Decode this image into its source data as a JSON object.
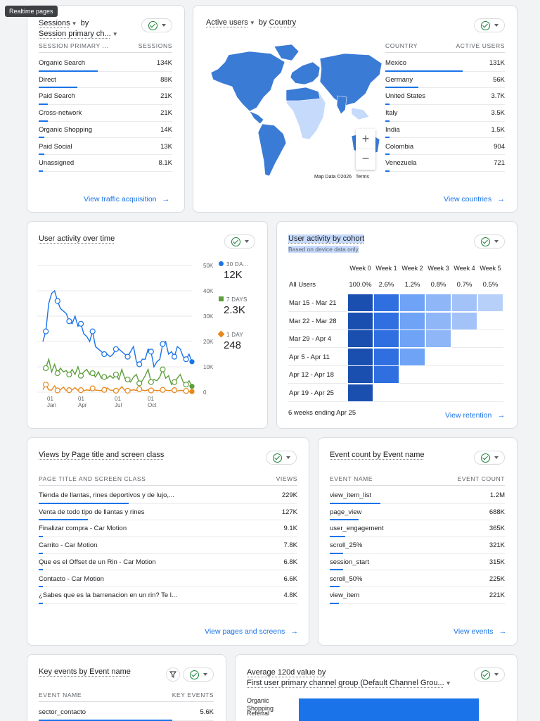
{
  "tooltip": "Realtime pages",
  "sessions_card": {
    "title_metric": "Sessions",
    "title_by": "by",
    "title_dim": "Session primary ch...",
    "col_dim": "SESSION PRIMARY ...",
    "col_metric": "SESSIONS",
    "rows": [
      {
        "label": "Organic Search",
        "value": "134K",
        "share": 1.0
      },
      {
        "label": "Direct",
        "value": "88K",
        "share": 0.66
      },
      {
        "label": "Paid Search",
        "value": "21K",
        "share": 0.16
      },
      {
        "label": "Cross-network",
        "value": "21K",
        "share": 0.16
      },
      {
        "label": "Organic Shopping",
        "value": "14K",
        "share": 0.1
      },
      {
        "label": "Paid Social",
        "value": "13K",
        "share": 0.1
      },
      {
        "label": "Unassigned",
        "value": "8.1K",
        "share": 0.06
      }
    ],
    "link": "View traffic acquisition"
  },
  "country_card": {
    "title_metric": "Active users",
    "title_by": "by",
    "title_dim": "Country",
    "col_dim": "COUNTRY",
    "col_metric": "ACTIVE USERS",
    "rows": [
      {
        "label": "Mexico",
        "value": "131K",
        "share": 1.0
      },
      {
        "label": "Germany",
        "value": "56K",
        "share": 0.43
      },
      {
        "label": "United States",
        "value": "3.7K",
        "share": 0.03
      },
      {
        "label": "Italy",
        "value": "3.5K",
        "share": 0.03
      },
      {
        "label": "India",
        "value": "1.5K",
        "share": 0.01
      },
      {
        "label": "Colombia",
        "value": "904",
        "share": 0.01
      },
      {
        "label": "Venezuela",
        "value": "721",
        "share": 0.01
      }
    ],
    "map_attribution": "Map Data ©2026",
    "map_terms": "Terms",
    "zoom_in": "+",
    "zoom_out": "−",
    "link": "View countries",
    "colors": {
      "land": "#3a7bd5",
      "light": "#c6dafc"
    }
  },
  "activity_card": {
    "title": "User activity over time",
    "legend": [
      {
        "label": "30 DA...",
        "value": "12K",
        "color": "#1a73e8"
      },
      {
        "label": "7 DAYS",
        "value": "2.3K",
        "color": "#5e9e3c"
      },
      {
        "label": "1 DAY",
        "value": "248",
        "color": "#e8861a"
      }
    ]
  },
  "chart_data": {
    "type": "line",
    "title": "User activity over time",
    "x_ticks": [
      {
        "day": "01",
        "month": "Jan"
      },
      {
        "day": "01",
        "month": "Apr"
      },
      {
        "day": "01",
        "month": "Jul"
      },
      {
        "day": "01",
        "month": "Oct"
      }
    ],
    "y_ticks": [
      "50K",
      "40K",
      "30K",
      "20K",
      "10K",
      "0"
    ],
    "ylim": [
      0,
      50000
    ],
    "grid": true,
    "series": [
      {
        "name": "30 DA...",
        "color": "#1a73e8",
        "values": [
          20000,
          24000,
          35000,
          39000,
          40000,
          36000,
          33000,
          32000,
          31000,
          28000,
          27000,
          30000,
          26000,
          27000,
          23000,
          22000,
          20000,
          24000,
          18000,
          17000,
          16000,
          15000,
          15000,
          14000,
          15000,
          17000,
          17000,
          16000,
          15000,
          14000,
          16000,
          18000,
          12000,
          11000,
          13000,
          13000,
          17000,
          16000,
          10000,
          12000,
          13000,
          19000,
          20000,
          15000,
          16000,
          14000,
          18000,
          17000,
          14000,
          13000,
          15000,
          12000
        ]
      },
      {
        "name": "7 DAYS",
        "color": "#5e9e3c",
        "values": [
          9000,
          9500,
          13000,
          8000,
          11000,
          7500,
          9500,
          8000,
          8500,
          7000,
          9000,
          7000,
          10000,
          6500,
          8000,
          9000,
          7000,
          7500,
          6000,
          8000,
          5500,
          6000,
          5500,
          6500,
          5500,
          7000,
          5000,
          9000,
          5500,
          5000,
          4000,
          6000,
          7000,
          3500,
          4500,
          6500,
          9000,
          4000,
          5000,
          4500,
          6000,
          9000,
          5500,
          6500,
          3000,
          4000,
          5500,
          7000,
          4000,
          3000,
          4500,
          2300
        ]
      },
      {
        "name": "1 DAY",
        "color": "#e8861a",
        "values": [
          1000,
          3000,
          900,
          800,
          2500,
          700,
          900,
          2000,
          600,
          800,
          900,
          1800,
          700,
          800,
          600,
          900,
          700,
          1500,
          800,
          700,
          600,
          900,
          1700,
          800,
          700,
          600,
          800,
          2200,
          700,
          600,
          800,
          900,
          700,
          1200,
          800,
          600,
          900,
          700,
          800,
          600,
          700,
          900,
          800,
          600,
          700,
          800,
          500,
          700,
          600,
          500,
          400,
          248
        ]
      }
    ]
  },
  "cohort_card": {
    "title": "User activity by cohort",
    "subtitle": "Based on device data only",
    "weeks": [
      "Week 0",
      "Week 1",
      "Week 2",
      "Week 3",
      "Week 4",
      "Week 5"
    ],
    "all_users_label": "All Users",
    "all_users": [
      "100.0%",
      "2.6%",
      "1.2%",
      "0.8%",
      "0.7%",
      "0.5%"
    ],
    "rows": [
      {
        "label": "Mar 15 - Mar 21",
        "cells": 6
      },
      {
        "label": "Mar 22 - Mar 28",
        "cells": 5
      },
      {
        "label": "Mar 29 - Apr 4",
        "cells": 4
      },
      {
        "label": "Apr 5 - Apr 11",
        "cells": 3
      },
      {
        "label": "Apr 12 - Apr 18",
        "cells": 2
      },
      {
        "label": "Apr 19 - Apr 25",
        "cells": 1
      }
    ],
    "footer": "6 weeks ending Apr 25",
    "link": "View retention",
    "colors": [
      "#1a4fb0",
      "#2f6fe0",
      "#6ea3f5",
      "#8fb6f7",
      "#a2c2f8",
      "#b6d0fa"
    ]
  },
  "pages_card": {
    "title": "Views by Page title and screen class",
    "col_dim": "PAGE TITLE AND SCREEN CLASS",
    "col_metric": "VIEWS",
    "rows": [
      {
        "label": "Tienda de llantas, rines deportivos y de lujo,...",
        "value": "229K",
        "share": 1.0
      },
      {
        "label": "Venta de todo tipo de llantas y rines",
        "value": "127K",
        "share": 0.55
      },
      {
        "label": "Finalizar compra - Car Motion",
        "value": "9.1K",
        "share": 0.04
      },
      {
        "label": "Carrito - Car Motion",
        "value": "7.8K",
        "share": 0.035
      },
      {
        "label": "Que es el Offset de un Rin - Car Motion",
        "value": "6.8K",
        "share": 0.03
      },
      {
        "label": "Contacto - Car Motion",
        "value": "6.6K",
        "share": 0.03
      },
      {
        "label": "¿Sabes que es la barrenacion en un rin? Te l...",
        "value": "4.8K",
        "share": 0.02
      }
    ],
    "link": "View pages and screens"
  },
  "events_card": {
    "title": "Event count by Event name",
    "col_dim": "EVENT NAME",
    "col_metric": "EVENT COUNT",
    "rows": [
      {
        "label": "view_item_list",
        "value": "1.2M",
        "share": 1.0
      },
      {
        "label": "page_view",
        "value": "688K",
        "share": 0.57
      },
      {
        "label": "user_engagement",
        "value": "365K",
        "share": 0.3
      },
      {
        "label": "scroll_25%",
        "value": "321K",
        "share": 0.27
      },
      {
        "label": "session_start",
        "value": "315K",
        "share": 0.26
      },
      {
        "label": "scroll_50%",
        "value": "225K",
        "share": 0.19
      },
      {
        "label": "view_item",
        "value": "221K",
        "share": 0.18
      }
    ],
    "link": "View events"
  },
  "key_events_card": {
    "title": "Key events by Event name",
    "col_dim": "EVENT NAME",
    "col_metric": "KEY EVENTS",
    "rows": [
      {
        "label": "sector_contacto",
        "value": "5.6K",
        "share": 1.0
      }
    ]
  },
  "avg_value_card": {
    "title_line1": "Average 120d value by",
    "title_line2": "First user primary channel group (Default Channel Grou...",
    "bars": [
      {
        "label": "Organic Shopping",
        "share": 1.0
      },
      {
        "label": "Referral",
        "share": 1.0
      }
    ]
  }
}
